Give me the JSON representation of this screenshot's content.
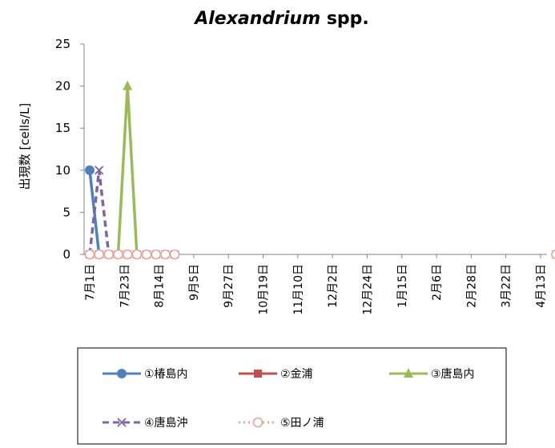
{
  "chart_data": {
    "type": "line",
    "title_italic": "Alexandrium",
    "title_rest": " spp.",
    "ylabel": "出現数 [cells/L]",
    "xlabel": "",
    "ylim": [
      0,
      25
    ],
    "yticks": [
      0,
      5,
      10,
      15,
      20,
      25
    ],
    "categories": [
      "7月1日",
      "7月23日",
      "8月14日",
      "9月5日",
      "9月27日",
      "10月19日",
      "11月10日",
      "12月2日",
      "12月24日",
      "1月15日",
      "2月6日",
      "2月28日",
      "3月22日",
      "4月13日"
    ],
    "grid": false,
    "legend_position": "bottom",
    "series": [
      {
        "name": "①椿島内",
        "color": "#4f81bd",
        "dash": "solid",
        "marker": "circle",
        "x": [
          0,
          0.27
        ],
        "y": [
          10,
          0
        ]
      },
      {
        "name": "②金浦",
        "color": "#c0504d",
        "dash": "solid",
        "marker": "square",
        "x": [
          0,
          0.27,
          0.55,
          0.82,
          1.09,
          1.36,
          1.64,
          1.91,
          2.18,
          2.45,
          13.45
        ],
        "y": [
          0,
          0,
          0,
          0,
          0,
          0,
          0,
          0,
          0,
          0,
          0
        ]
      },
      {
        "name": "③唐島内",
        "color": "#9bbb59",
        "dash": "solid",
        "marker": "triangle",
        "x": [
          0.82,
          1.09,
          1.36
        ],
        "y": [
          0,
          20,
          0
        ]
      },
      {
        "name": "④唐島沖",
        "color": "#8064a2",
        "dash": "dashed",
        "marker": "x",
        "x": [
          0,
          0.27,
          0.55
        ],
        "y": [
          0,
          10,
          0
        ]
      },
      {
        "name": "⑤田ノ浦",
        "color": "#e6a49c",
        "dash": "dotted",
        "marker": "open-circle",
        "x": [
          0,
          0.27,
          0.55,
          0.82,
          1.09,
          1.36,
          1.64,
          1.91,
          2.18,
          2.45,
          13.45
        ],
        "y": [
          0,
          0,
          0,
          0,
          0,
          0,
          0,
          0,
          0,
          0,
          0
        ]
      }
    ]
  }
}
